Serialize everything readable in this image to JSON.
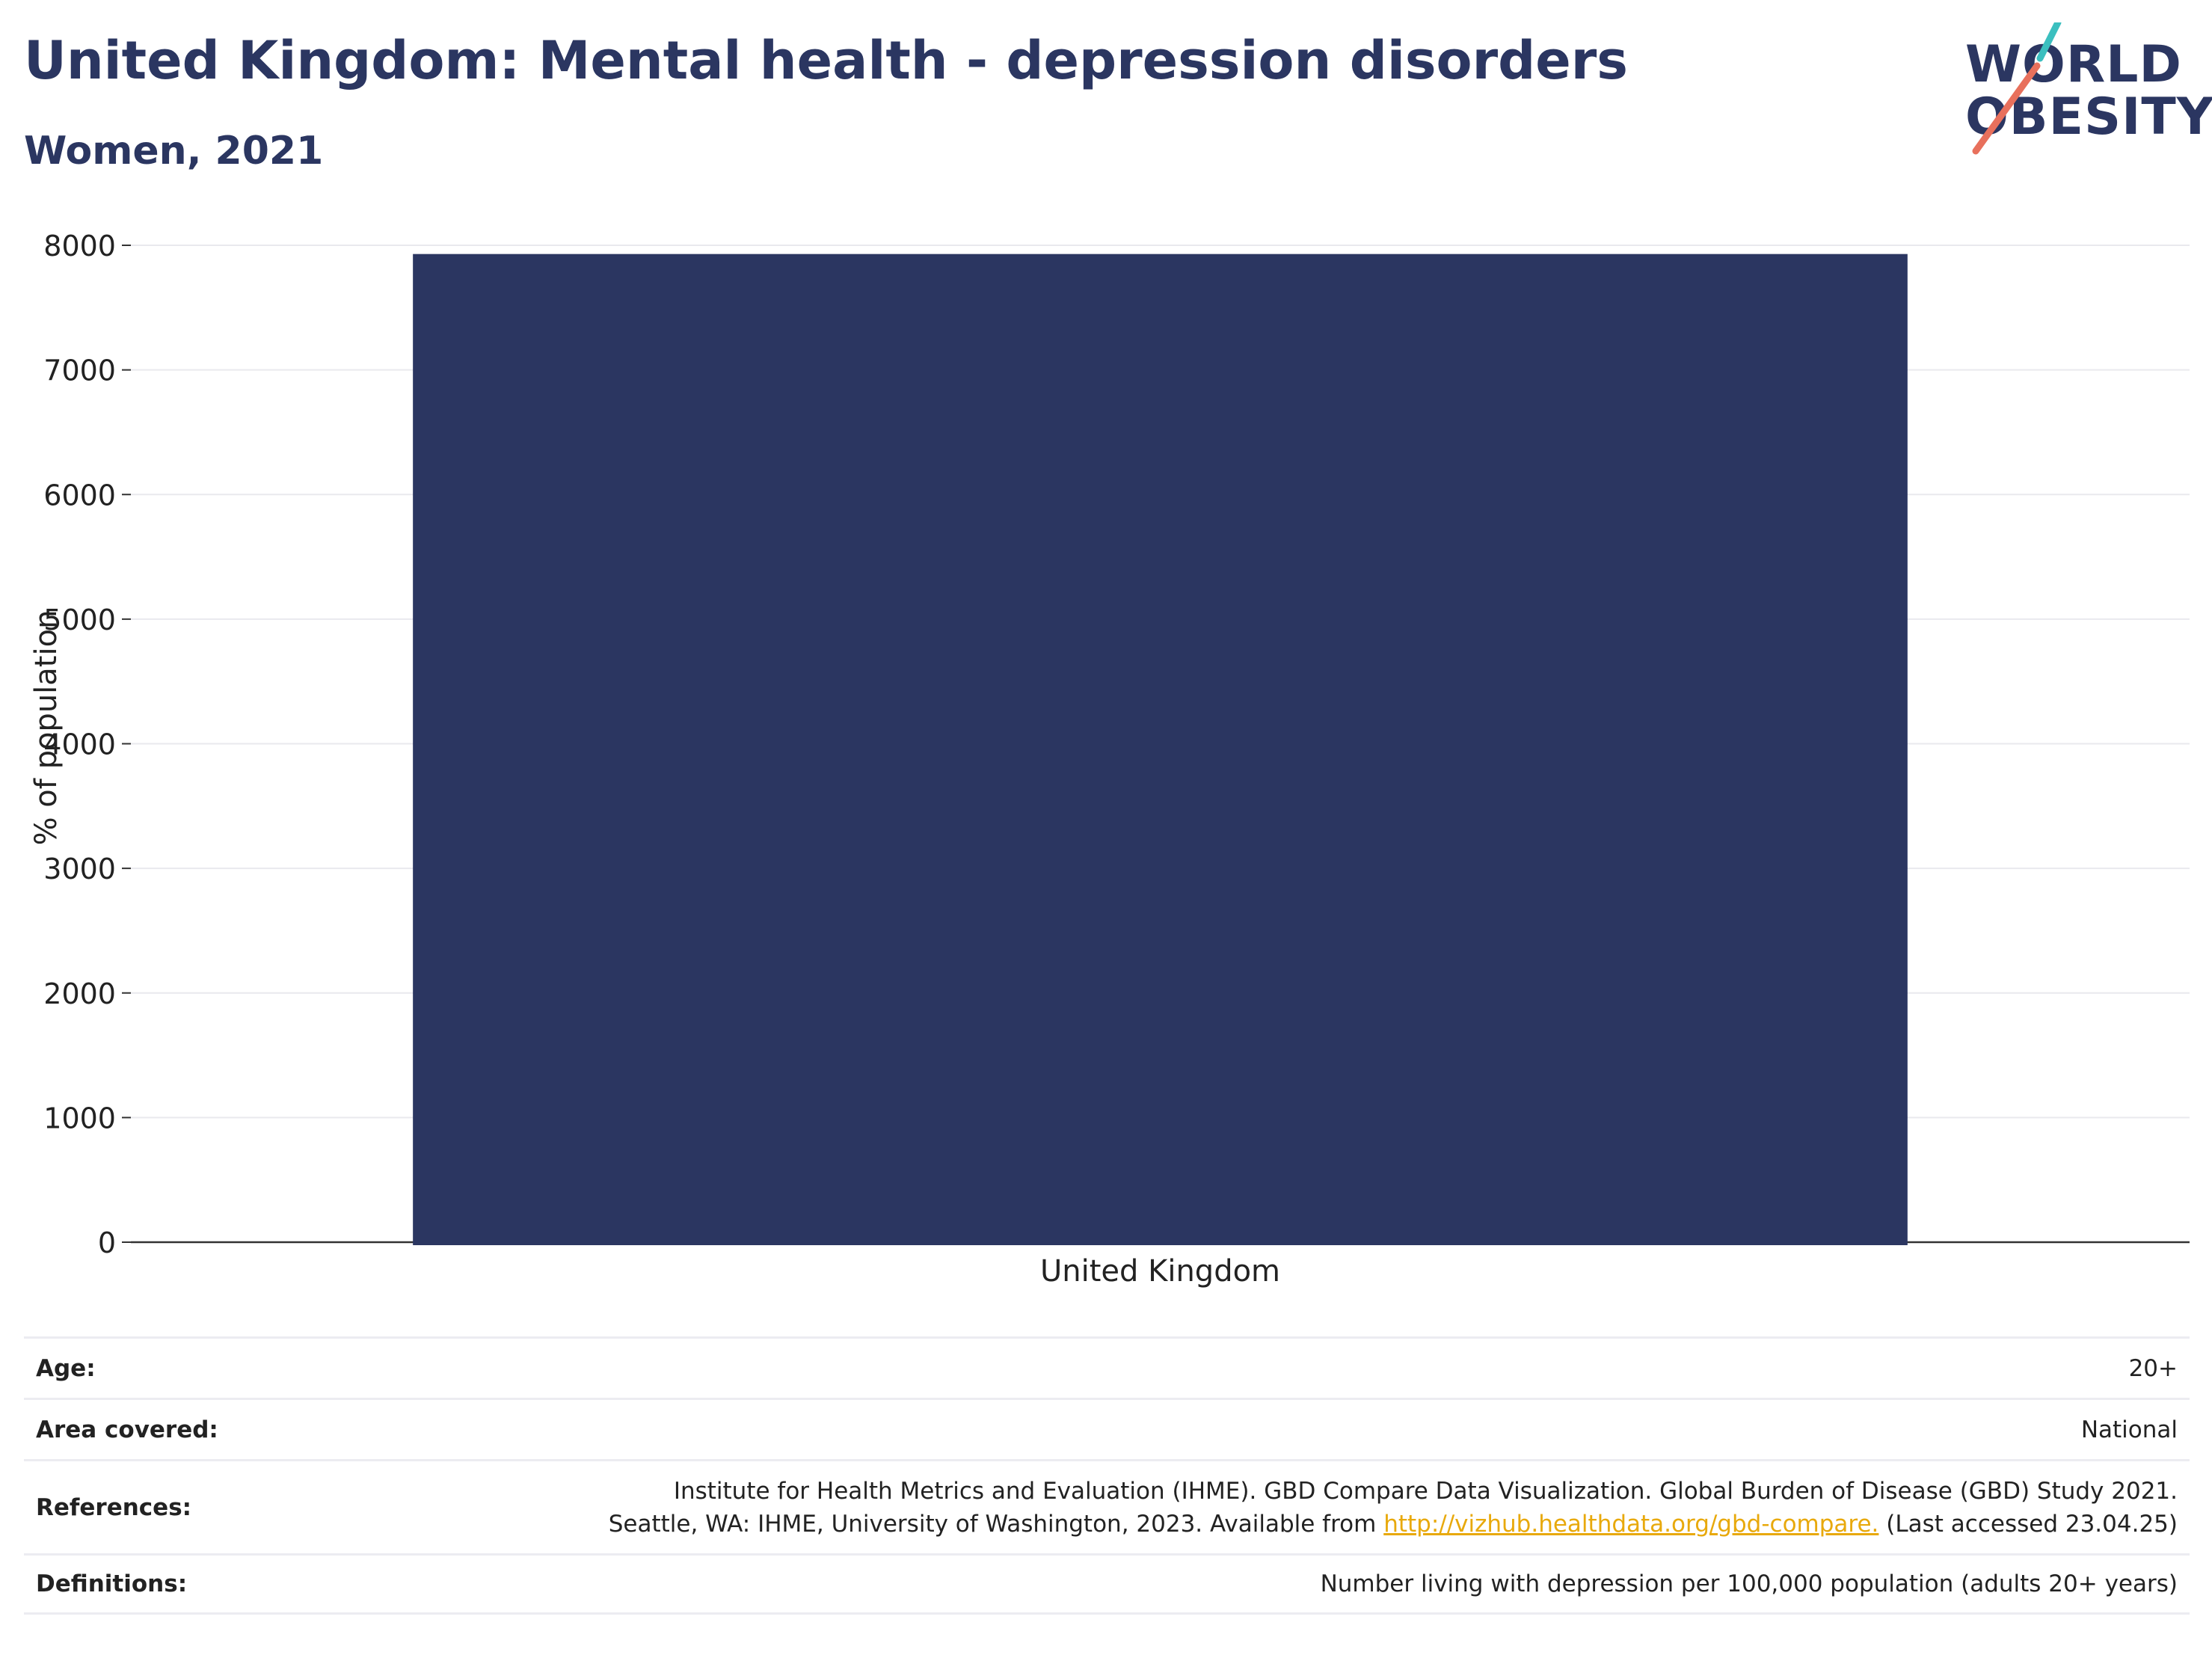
{
  "header": {
    "title": "United Kingdom: Mental health - depression disorders",
    "subtitle": "Women, 2021"
  },
  "logo": {
    "line1": "WORLD",
    "line2": "OBESITY",
    "accent_teal": "#3bbfbf",
    "accent_coral": "#e8705c"
  },
  "chart_data": {
    "type": "bar",
    "categories": [
      "United Kingdom"
    ],
    "values": [
      7930
    ],
    "title": "United Kingdom: Mental health - depression disorders",
    "subtitle": "Women, 2021",
    "xlabel": "",
    "ylabel": "% of population",
    "ylim": [
      0,
      8000
    ],
    "yticks": [
      0,
      1000,
      2000,
      3000,
      4000,
      5000,
      6000,
      7000,
      8000
    ],
    "grid": true,
    "bar_color": "#2b3661"
  },
  "info": {
    "age": {
      "label": "Age:",
      "value": "20+"
    },
    "area": {
      "label": "Area covered:",
      "value": "National"
    },
    "references": {
      "label": "References:",
      "line1": "Institute for Health Metrics and Evaluation (IHME). GBD Compare Data Visualization. Global Burden of Disease (GBD) Study 2021.",
      "line2_pre": "Seattle, WA: IHME, University of Washington, 2023. Available from ",
      "link": "http://vizhub.healthdata.org/gbd-compare.",
      "line2_post": " (Last accessed 23.04.25)"
    },
    "definitions": {
      "label": "Definitions:",
      "value": "Number living with depression per 100,000 population (adults 20+ years)"
    }
  }
}
